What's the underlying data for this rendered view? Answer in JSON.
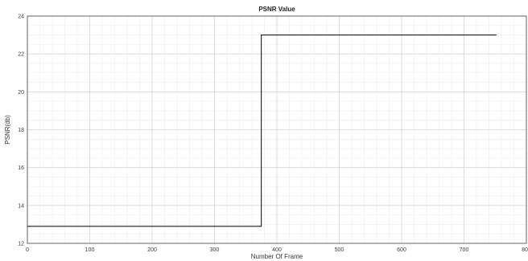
{
  "chart_data": {
    "type": "line",
    "title": "PSNR Value",
    "xlabel": "Number Of Frame",
    "ylabel": "PSNR(db)",
    "xlim": [
      0,
      800
    ],
    "ylim": [
      12,
      24
    ],
    "xticks": [
      0,
      100,
      200,
      300,
      400,
      500,
      600,
      700,
      800
    ],
    "yticks": [
      12,
      14,
      16,
      18,
      20,
      22,
      24
    ],
    "grid": true,
    "minor_grid": true,
    "series": [
      {
        "x": [
          0,
          375,
          375,
          375,
          375,
          752
        ],
        "y": [
          12.9,
          12.9,
          17.3,
          19.8,
          23.0,
          23.0
        ]
      }
    ],
    "colors": {
      "line": "#1a1a1a",
      "grid_major": "#d6d6d6",
      "grid_minor": "#ececec",
      "axes": "#444444"
    }
  }
}
